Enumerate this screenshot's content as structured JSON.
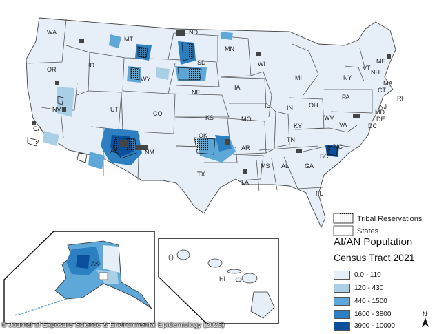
{
  "state_labels": [
    "WA",
    "MT",
    "ND",
    "MN",
    "ME",
    "OR",
    "ID",
    "SD",
    "WI",
    "VT",
    "NH",
    "MI",
    "NY",
    "MA",
    "CT",
    "RI",
    "WY",
    "IA",
    "PA",
    "NE",
    "NJ",
    "MD",
    "DE",
    "DC",
    "NV",
    "UT",
    "IL",
    "IN",
    "OH",
    "CO",
    "KS",
    "MO",
    "WV",
    "VA",
    "KY",
    "CA",
    "OK",
    "AR",
    "TN",
    "NC",
    "AZ",
    "NM",
    "SC",
    "MS",
    "AL",
    "GA",
    "TX",
    "LA",
    "FL",
    "AK",
    "HI"
  ],
  "legend": {
    "tribal_label": "Tribal Reservations",
    "states_label": "States",
    "title": "AI/AN Population",
    "subtitle": "Census Tract 2021",
    "bins": [
      {
        "label": "0.0 - 110",
        "color": "#e6eef8"
      },
      {
        "label": "120 - 430",
        "color": "#a9cfe6"
      },
      {
        "label": "440 - 1500",
        "color": "#5ea8d9"
      },
      {
        "label": "1600 - 3800",
        "color": "#2c7fc0"
      },
      {
        "label": "3900 - 10000",
        "color": "#0c4f9c"
      }
    ]
  },
  "north_arrow": "N",
  "credit": "© Journal of Exposure Science & Environmental Epidemiology (2023)"
}
